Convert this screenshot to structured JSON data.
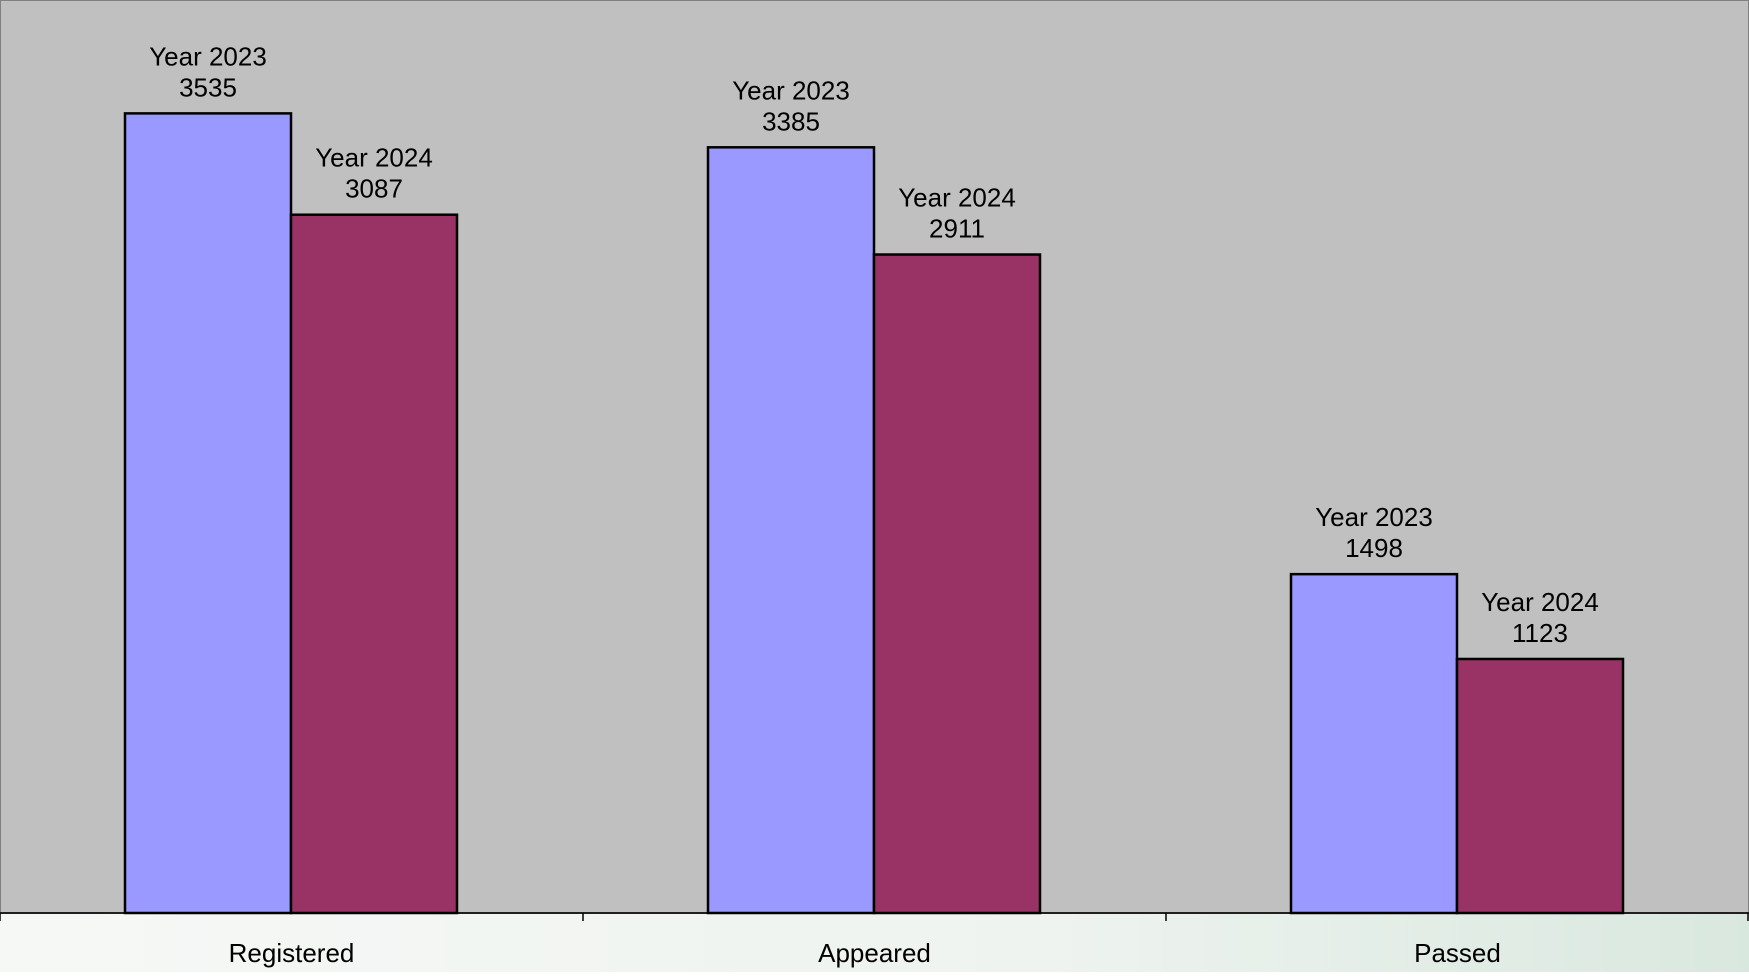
{
  "chart_data": {
    "type": "bar",
    "categories": [
      "Registered",
      "Appeared",
      "Passed"
    ],
    "series": [
      {
        "name": "Year 2023",
        "values": [
          3535,
          3385,
          1498
        ]
      },
      {
        "name": "Year 2024",
        "values": [
          3087,
          2911,
          1123
        ]
      }
    ],
    "title": "",
    "xlabel": "",
    "ylabel": "",
    "ylim": [
      0,
      4000
    ],
    "grid": false,
    "legend": "none",
    "data_labels": "series name and value above each bar",
    "colors": {
      "plot_background": "#c0c0c0",
      "series_2023": "#9999ff",
      "series_2024": "#993366",
      "bar_outline": "#000000",
      "footer_background": "#eef3ee"
    }
  }
}
